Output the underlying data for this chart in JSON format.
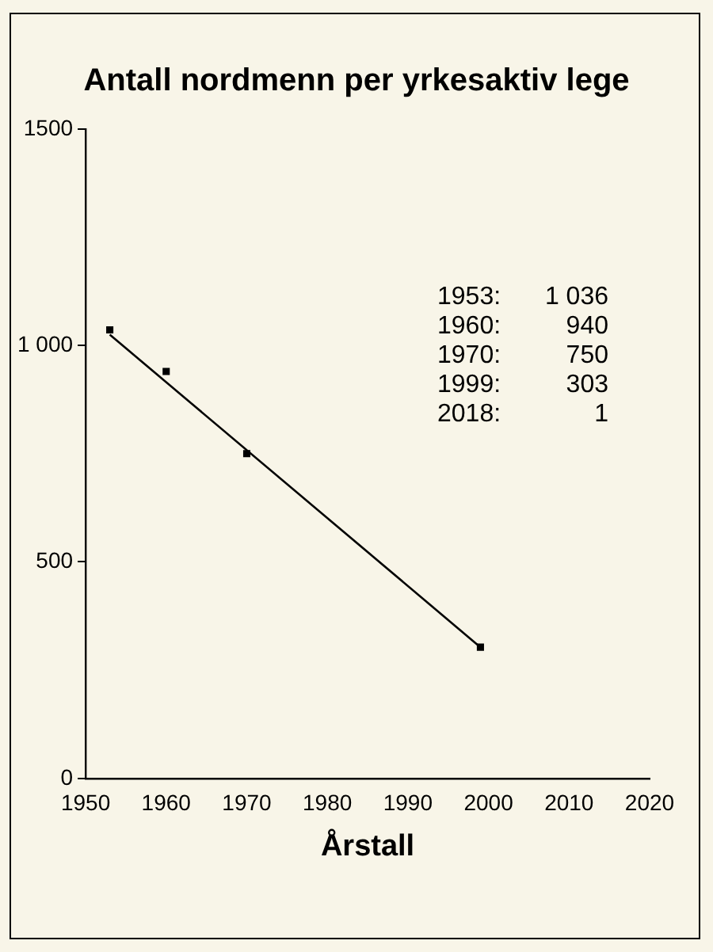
{
  "chart_data": {
    "type": "scatter",
    "title": "Antall nordmenn per yrkesaktiv lege",
    "xlabel": "Årstall",
    "xlim": [
      1950,
      2020
    ],
    "xticks": [
      1950,
      1960,
      1970,
      1980,
      1990,
      2000,
      2010,
      2020
    ],
    "ylim": [
      0,
      1500
    ],
    "yticks": [
      0,
      500,
      {
        "value": 1000,
        "label": "1 000"
      },
      1500
    ],
    "grid": false,
    "legend": false,
    "marker": "square",
    "series": [
      {
        "type": "scatter",
        "color": "#000000",
        "x": [
          1953,
          1960,
          1970,
          1999
        ],
        "values": [
          1036,
          940,
          750,
          303
        ]
      },
      {
        "type": "line",
        "color": "#000000",
        "x": [
          1953,
          1999
        ],
        "values": [
          1025,
          303
        ],
        "marker": "none",
        "line_style": "solid"
      }
    ],
    "annotations": [
      "1953: 1 036",
      "1960: 940",
      "1970: 750",
      "1999: 303",
      "2018: 1"
    ]
  }
}
